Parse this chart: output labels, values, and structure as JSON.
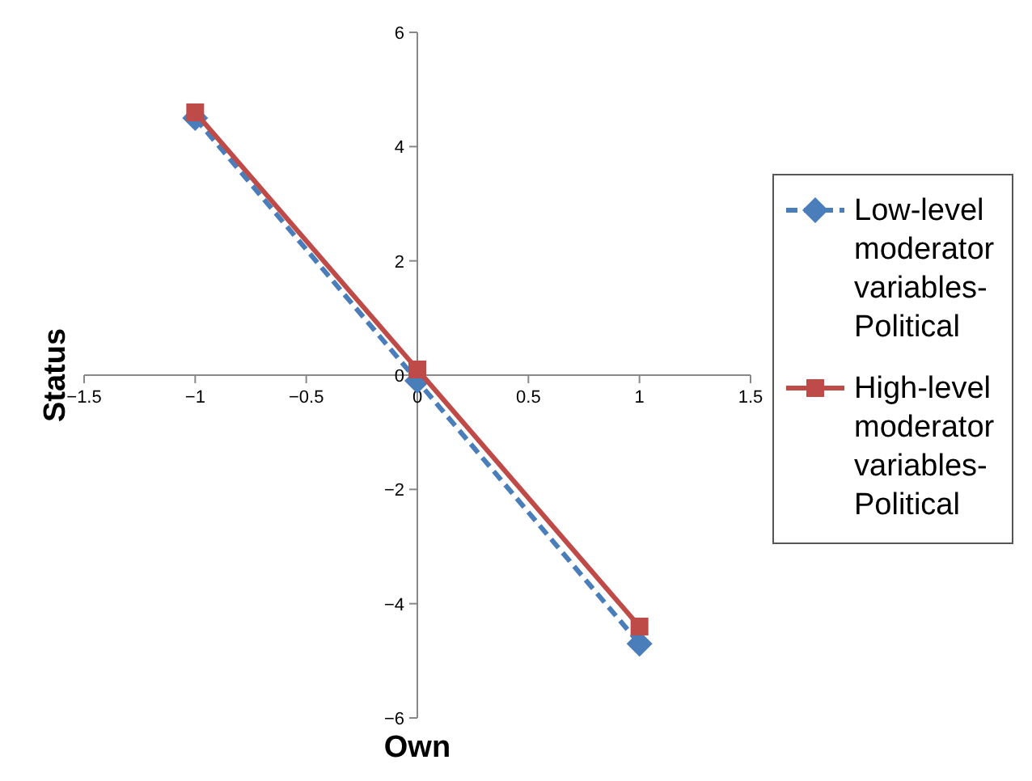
{
  "chart_data": {
    "type": "line",
    "xlabel": "Own",
    "ylabel": "Status",
    "x": [
      -1,
      0,
      1
    ],
    "series": [
      {
        "name": "Low-level moderator variables-Political",
        "color": "#4a7ebb",
        "values": [
          4.5,
          -0.1,
          -4.7
        ],
        "marker": "diamond",
        "line_style": "dashed"
      },
      {
        "name": "High-level moderator variables-Political",
        "color": "#be4b48",
        "values": [
          4.6,
          0.1,
          -4.4
        ],
        "marker": "square",
        "line_style": "solid"
      }
    ],
    "xlim": [
      -1.5,
      1.5
    ],
    "xticks": [
      {
        "value": -1.5,
        "label": "−1.5"
      },
      {
        "value": -1,
        "label": "−1"
      },
      {
        "value": -0.5,
        "label": "−0.5"
      },
      0,
      0.5,
      1,
      1.5
    ],
    "ylim": [
      -6,
      6
    ],
    "yticks": [
      {
        "value": -6,
        "label": "−6"
      },
      {
        "value": -4,
        "label": "−4"
      },
      {
        "value": -2,
        "label": "−2"
      },
      0,
      2,
      4,
      6
    ],
    "grid": false,
    "legend": "right"
  }
}
